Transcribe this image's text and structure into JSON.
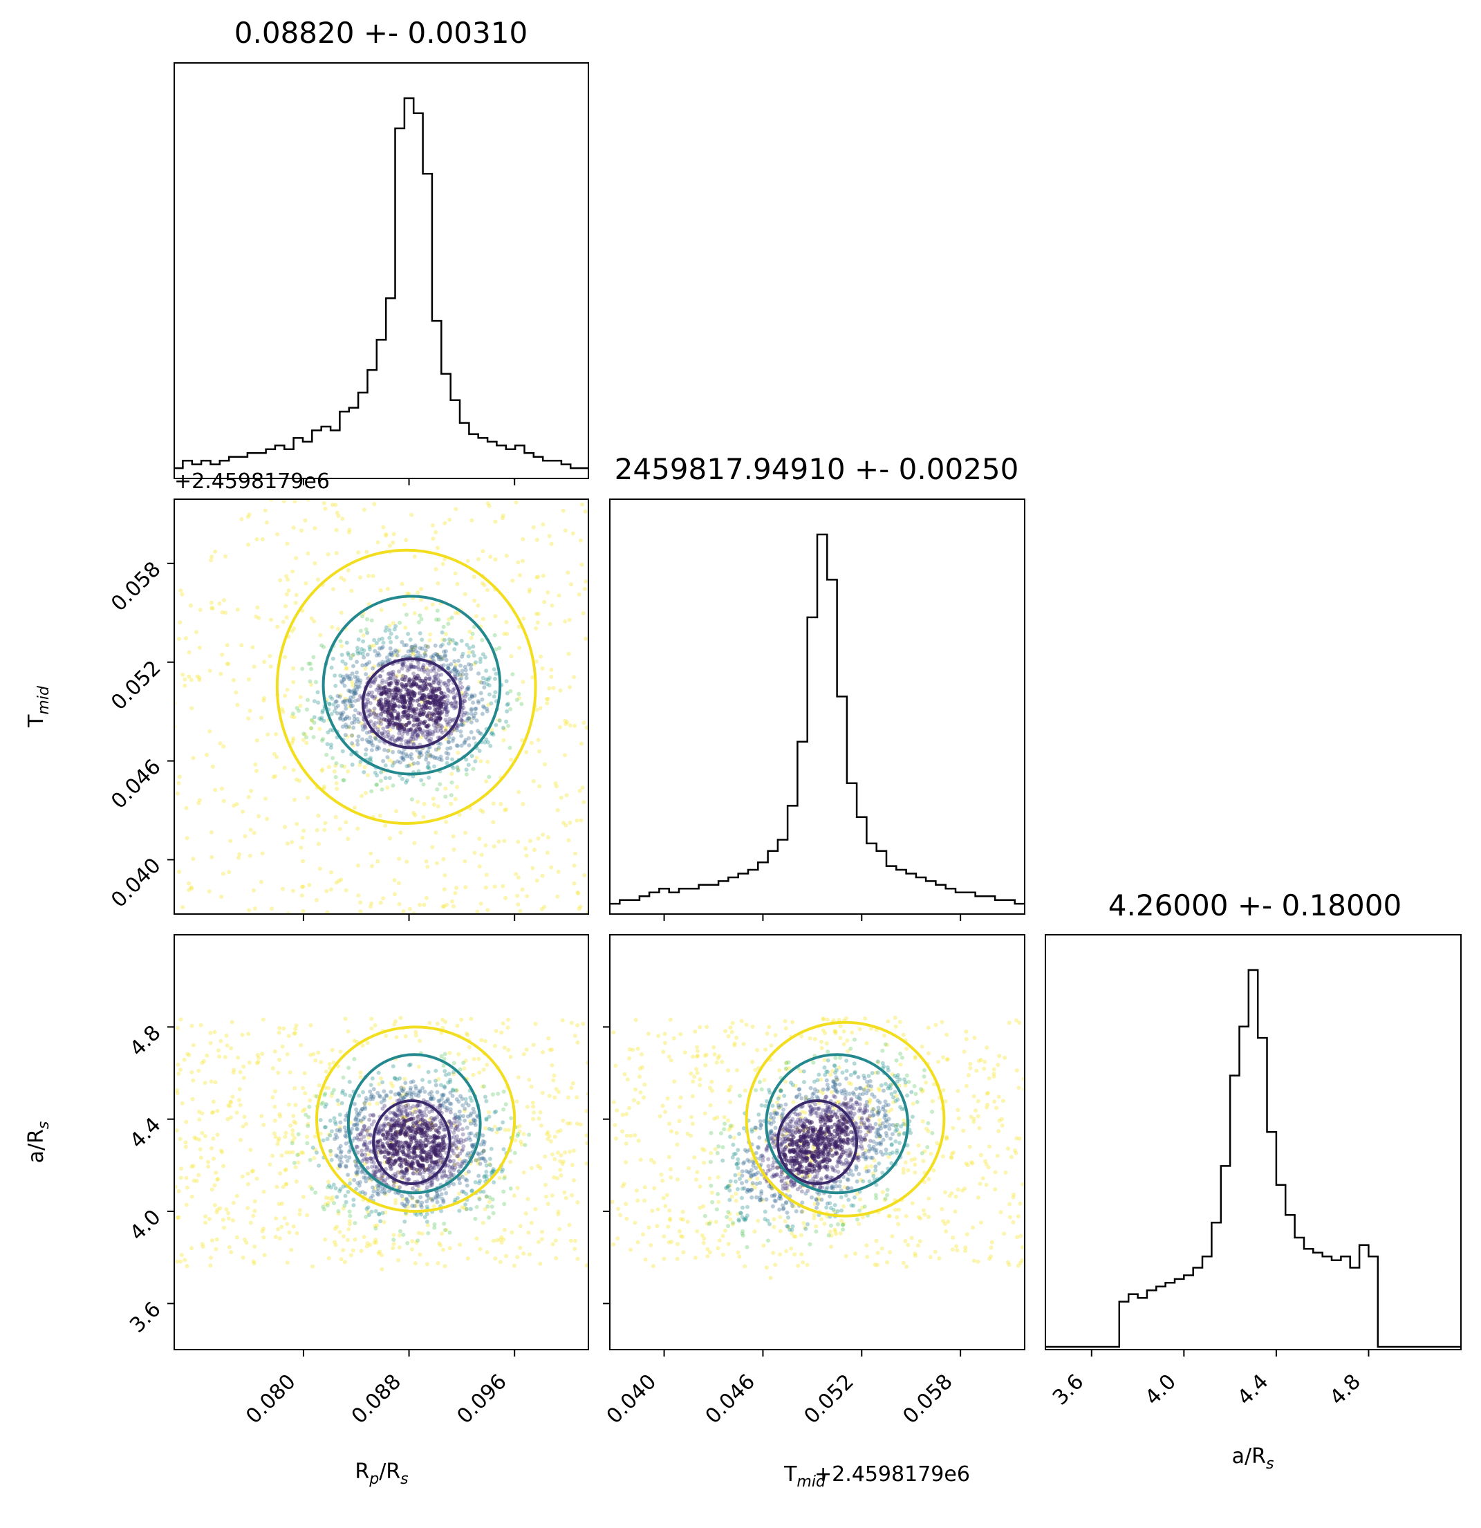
{
  "chart_data": {
    "type": "corner",
    "parameters": [
      {
        "key": "rp",
        "label_main": "R",
        "label_sub": "p",
        "label_mid": "/R",
        "label_sub2": "s",
        "range": [
          0.0702,
          0.1016
        ],
        "ticks": [
          "0.080",
          "0.088",
          "0.096"
        ],
        "tick_values": [
          0.08,
          0.088,
          0.096
        ]
      },
      {
        "key": "tmid",
        "label_main": "T",
        "label_sub": "mid",
        "label_mid": "",
        "label_sub2": "",
        "range": [
          0.0367,
          0.0619
        ],
        "ticks": [
          "0.040",
          "0.046",
          "0.052",
          "0.058"
        ],
        "tick_values": [
          0.04,
          0.046,
          0.052,
          0.058
        ],
        "offset": "+2.4598179e6"
      },
      {
        "key": "ars",
        "label_main": "a/R",
        "label_sub": "s",
        "label_mid": "",
        "label_sub2": "",
        "range": [
          3.4,
          5.2
        ],
        "ticks": [
          "3.6",
          "4.0",
          "4.4",
          "4.8"
        ],
        "tick_values": [
          3.6,
          4.0,
          4.4,
          4.8
        ]
      }
    ],
    "titles": [
      "0.08820 +- 0.00310",
      "2459817.94910 +- 0.00250",
      "4.26000 +- 0.18000"
    ],
    "histograms": [
      {
        "param": "rp",
        "centers": [
          0.0705,
          0.0712,
          0.0719,
          0.0726,
          0.0733,
          0.074,
          0.0747,
          0.0754,
          0.0761,
          0.0768,
          0.0775,
          0.0782,
          0.0789,
          0.0796,
          0.0803,
          0.081,
          0.0817,
          0.0824,
          0.0831,
          0.0838,
          0.0845,
          0.0852,
          0.0859,
          0.0866,
          0.0873,
          0.088,
          0.0887,
          0.0894,
          0.0901,
          0.0908,
          0.0915,
          0.0922,
          0.0929,
          0.0936,
          0.0943,
          0.095,
          0.0957,
          0.0964,
          0.0971,
          0.0978,
          0.0985,
          0.0992,
          0.0999,
          0.1006,
          0.1013
        ],
        "counts": [
          2,
          4,
          3,
          4,
          3,
          4,
          5,
          5,
          6,
          6,
          7,
          8,
          7,
          10,
          9,
          12,
          13,
          12,
          17,
          18,
          22,
          28,
          36,
          47,
          92,
          100,
          96,
          80,
          41,
          27,
          20,
          14,
          11,
          10,
          9,
          8,
          7,
          8,
          6,
          5,
          4,
          4,
          3,
          2,
          2
        ]
      },
      {
        "param": "tmid",
        "centers": [
          0.037,
          0.0376,
          0.0382,
          0.0388,
          0.0394,
          0.04,
          0.0406,
          0.0412,
          0.0418,
          0.0424,
          0.043,
          0.0436,
          0.0442,
          0.0448,
          0.0454,
          0.046,
          0.0466,
          0.0472,
          0.0478,
          0.0484,
          0.049,
          0.0496,
          0.0502,
          0.0508,
          0.0514,
          0.052,
          0.0526,
          0.0532,
          0.0538,
          0.0544,
          0.055,
          0.0556,
          0.0562,
          0.0568,
          0.0574,
          0.058,
          0.0586,
          0.0592,
          0.0598,
          0.0604,
          0.061,
          0.0616
        ],
        "counts": [
          2,
          3,
          3,
          4,
          5,
          6,
          5,
          6,
          6,
          7,
          7,
          8,
          9,
          10,
          11,
          13,
          16,
          19,
          28,
          45,
          78,
          100,
          88,
          57,
          34,
          25,
          18,
          16,
          12,
          11,
          10,
          9,
          8,
          7,
          6,
          5,
          5,
          4,
          4,
          3,
          3,
          2
        ]
      },
      {
        "param": "ars",
        "centers": [
          3.42,
          3.46,
          3.5,
          3.54,
          3.58,
          3.62,
          3.66,
          3.7,
          3.74,
          3.78,
          3.82,
          3.86,
          3.9,
          3.94,
          3.98,
          4.02,
          4.06,
          4.1,
          4.14,
          4.18,
          4.22,
          4.26,
          4.3,
          4.34,
          4.38,
          4.42,
          4.46,
          4.5,
          4.54,
          4.58,
          4.62,
          4.66,
          4.7,
          4.74,
          4.78,
          4.82,
          4.86,
          4.9,
          4.94,
          4.98,
          5.02,
          5.06,
          5.1,
          5.14,
          5.18
        ],
        "counts": [
          0,
          0,
          0,
          0,
          0,
          0,
          0,
          0,
          12,
          14,
          13,
          15,
          16,
          17,
          18,
          19,
          21,
          24,
          33,
          48,
          72,
          85,
          100,
          82,
          57,
          43,
          35,
          29,
          26,
          25,
          24,
          23,
          24,
          21,
          27,
          24,
          0,
          0,
          0,
          0,
          0,
          0,
          0,
          0,
          0
        ]
      }
    ],
    "scatter": [
      {
        "x": "rp",
        "y": "tmid",
        "center": [
          0.0882,
          0.0495
        ],
        "sigma": [
          0.0031,
          0.0025
        ],
        "contours": [
          {
            "level": "inner",
            "color": "#3b2a6b",
            "rx": 0.0037,
            "ry": 0.0027,
            "cx": 0.0882,
            "cy": 0.0495
          },
          {
            "level": "middle",
            "color": "#23898e",
            "rx": 0.0067,
            "ry": 0.0054,
            "cx": 0.0882,
            "cy": 0.0506
          },
          {
            "level": "outer",
            "color": "#f2de1f",
            "rx": 0.0098,
            "ry": 0.0083,
            "cx": 0.0878,
            "cy": 0.0505
          }
        ]
      },
      {
        "x": "tmid",
        "y": "ars",
        "center": [
          0.0493,
          4.29
        ],
        "sigma": [
          0.0025,
          0.18
        ],
        "contours": [
          {
            "level": "inner",
            "color": "#3b2a6b",
            "rx": 0.0024,
            "ry": 0.18,
            "cx": 0.0493,
            "cy": 4.3
          },
          {
            "level": "middle",
            "color": "#23898e",
            "rx": 0.0043,
            "ry": 0.3,
            "cx": 0.0505,
            "cy": 4.38
          },
          {
            "level": "outer",
            "color": "#f2de1f",
            "rx": 0.006,
            "ry": 0.42,
            "cx": 0.051,
            "cy": 4.4
          }
        ]
      },
      {
        "x": "rp",
        "y": "ars",
        "center": [
          0.0882,
          4.29
        ],
        "sigma": [
          0.0031,
          0.18
        ],
        "contours": [
          {
            "level": "inner",
            "color": "#3b2a6b",
            "rx": 0.0029,
            "ry": 0.18,
            "cx": 0.0882,
            "cy": 4.3
          },
          {
            "level": "middle",
            "color": "#23898e",
            "rx": 0.005,
            "ry": 0.3,
            "cx": 0.0884,
            "cy": 4.38
          },
          {
            "level": "outer",
            "color": "#f2de1f",
            "rx": 0.0075,
            "ry": 0.4,
            "cx": 0.0885,
            "cy": 4.4
          }
        ]
      }
    ],
    "point_colors": [
      "#3b1f63",
      "#44337a",
      "#31688e",
      "#21918c",
      "#5ec962",
      "#f5e11c"
    ],
    "grid": false
  }
}
